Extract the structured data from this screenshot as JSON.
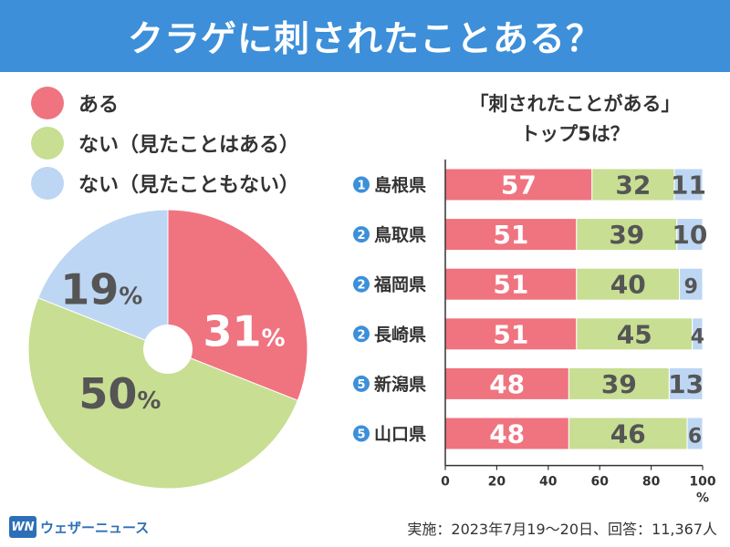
{
  "title": "クラゲに刺されたことある？",
  "colors": {
    "header": "#3d8fd9",
    "yes": "#ef7480",
    "no_seen": "#c8de93",
    "no_never": "#bdd6f3",
    "label_text": "#555555",
    "badge": "#3d8fd9"
  },
  "brand": {
    "logo": "WN",
    "name": "ウェザーニュース"
  },
  "footnote": "実施：2023年7月19～20日、回答：11,367人",
  "chart_data": [
    {
      "type": "pie",
      "donut": true,
      "legend_position": "top-left",
      "slices": [
        {
          "label": "ある",
          "value": 31,
          "color_key": "yes",
          "display": "31%"
        },
        {
          "label": "ない（見たことはある）",
          "value": 50,
          "color_key": "no_seen",
          "display": "50%"
        },
        {
          "label": "ない（見たこともない）",
          "value": 19,
          "color_key": "no_never",
          "display": "19%"
        }
      ]
    },
    {
      "type": "bar",
      "orientation": "horizontal",
      "stacked": true,
      "title_lines": [
        "「刺されたことがある」",
        "トップ5は？"
      ],
      "xlim": [
        0,
        100
      ],
      "xticks": [
        0,
        20,
        40,
        60,
        80,
        100
      ],
      "xunit": "%",
      "categories": [
        {
          "rank": "1",
          "name": "島根県"
        },
        {
          "rank": "2",
          "name": "鳥取県"
        },
        {
          "rank": "2",
          "name": "福岡県"
        },
        {
          "rank": "2",
          "name": "長崎県"
        },
        {
          "rank": "5",
          "name": "新潟県"
        },
        {
          "rank": "5",
          "name": "山口県"
        }
      ],
      "series": [
        {
          "color_key": "yes",
          "values": [
            57,
            51,
            51,
            51,
            48,
            48
          ]
        },
        {
          "color_key": "no_seen",
          "values": [
            32,
            39,
            40,
            45,
            39,
            46
          ]
        },
        {
          "color_key": "no_never",
          "values": [
            11,
            10,
            9,
            4,
            13,
            6
          ]
        }
      ]
    }
  ]
}
